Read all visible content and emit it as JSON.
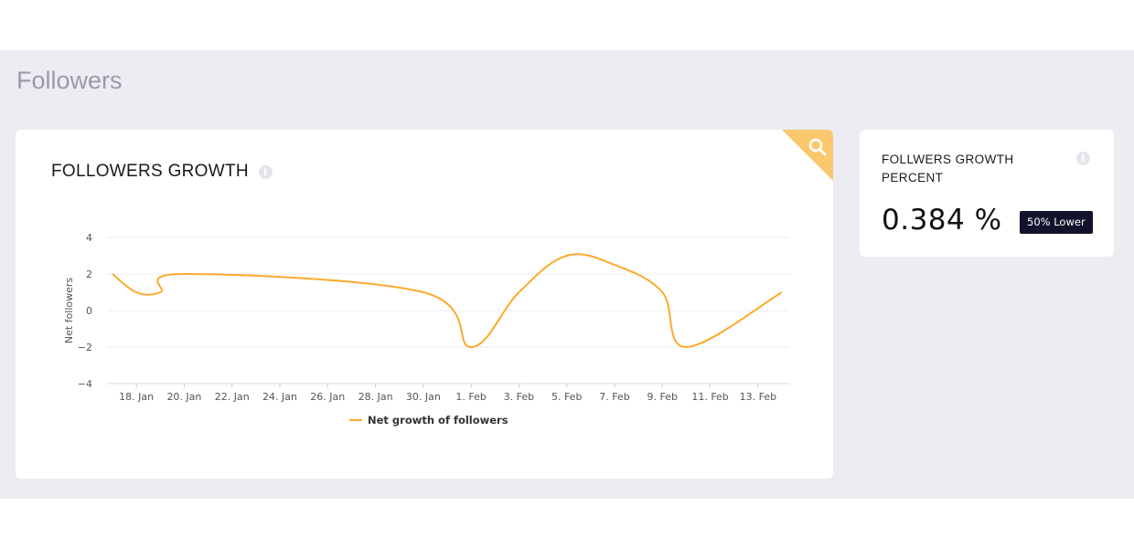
{
  "page": {
    "section_title": "Followers"
  },
  "growth_card": {
    "title": "FOLLOWERS GROWTH",
    "info_icon": "info-icon",
    "corner_icon": "search-icon",
    "accent_color": "#fcc86e"
  },
  "side_card": {
    "title": "FOLLWERS GROWTH PERCENT",
    "value": "0.384 %",
    "badge": "50% Lower",
    "info_icon": "info-icon"
  },
  "chart_data": {
    "type": "line",
    "ylabel": "Net followers",
    "ylim": [
      -4,
      4
    ],
    "yticks": [
      "4",
      "2",
      "0",
      "−2",
      "−4"
    ],
    "xticks": [
      "18. Jan",
      "20. Jan",
      "22. Jan",
      "24. Jan",
      "26. Jan",
      "28. Jan",
      "30. Jan",
      "1. Feb",
      "3. Feb",
      "5. Feb",
      "7. Feb",
      "9. Feb",
      "11. Feb",
      "13. Feb"
    ],
    "grid": true,
    "legend": "bottom-center",
    "series": [
      {
        "name": "Net growth of followers",
        "color": "#fbaa2c",
        "x": [
          "17. Jan",
          "18. Jan",
          "19. Jan",
          "20. Jan",
          "30. Jan",
          "1. Feb",
          "3. Feb",
          "5. Feb",
          "7. Feb",
          "9. Feb",
          "10. Feb",
          "14. Feb"
        ],
        "values": [
          2,
          1,
          1,
          2,
          1,
          -2,
          1,
          3,
          2.5,
          1,
          -2,
          1
        ]
      }
    ]
  }
}
